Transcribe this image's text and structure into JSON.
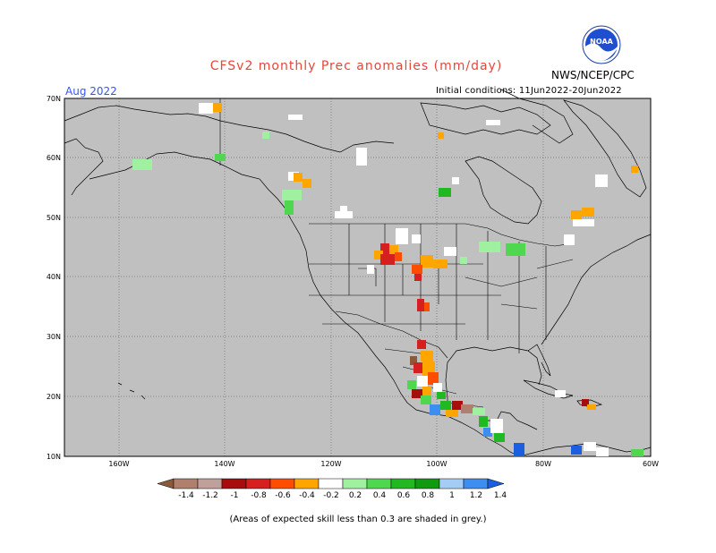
{
  "title": "CFSv2 monthly Prec anomalies (mm/day)",
  "agency": "NWS/NCEP/CPC",
  "logo_text": "NOAA",
  "valid_month": "Aug 2022",
  "initial_conditions": "Initial conditions: 11Jun2022-20Jun2022",
  "footnote": "(Areas of expected skill less than 0.3 are shaded in grey.)",
  "lat_labels": [
    "70N",
    "60N",
    "50N",
    "40N",
    "30N",
    "20N",
    "10N"
  ],
  "lon_labels": [
    "160W",
    "140W",
    "120W",
    "100W",
    "80W",
    "60W"
  ],
  "colorbar": {
    "tick_labels": [
      "-1.4",
      "-1.2",
      "-1",
      "-0.8",
      "-0.6",
      "-0.4",
      "-0.2",
      "0.2",
      "0.4",
      "0.6",
      "0.8",
      "1",
      "1.2",
      "1.4"
    ],
    "colors": [
      "#8a5a3a",
      "#b07f6e",
      "#c0a09a",
      "#a80d0d",
      "#d61f1f",
      "#ff4d00",
      "#ffa500",
      "#ffffff",
      "#9ff09f",
      "#4fd84f",
      "#22b822",
      "#0f9a0f",
      "#a3cdf5",
      "#3d8ef0",
      "#1a5fdf"
    ]
  },
  "colors": {
    "skill_grey": "#c0c0c0",
    "title_red": "#e8453c",
    "month_blue": "#3355ff"
  }
}
